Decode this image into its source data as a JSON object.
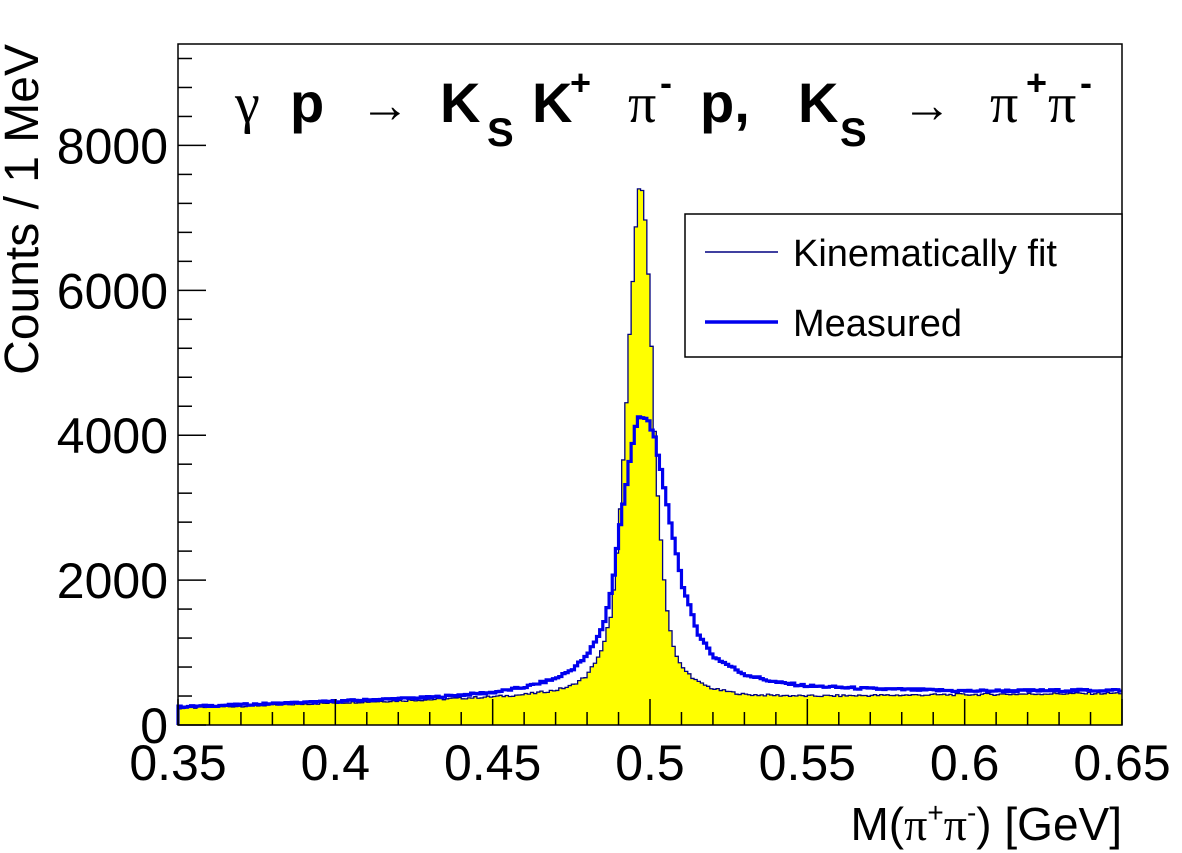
{
  "chart_data": {
    "type": "histogram",
    "title": {
      "gamma": "γ",
      "p1": "p",
      "arrow": "→",
      "K1": "K",
      "s1": "S",
      "K2": "K",
      "plus": "+",
      "pi1": "π",
      "minus1": "-",
      "p2": "p,",
      "K3": "K",
      "s2": "S",
      "pi2": "π",
      "plus2": "+",
      "pi3": "π",
      "minus2": "-"
    },
    "xlabel": {
      "pre": "M(",
      "pi": "π",
      "plus": "+",
      "pi2": "π",
      "minus": "-",
      "post": ") [GeV]"
    },
    "ylabel": "Counts / 1 MeV",
    "xlim": [
      0.35,
      0.65
    ],
    "ylim": [
      0,
      9400
    ],
    "x_ticks": [
      "0.35",
      "0.4",
      "0.45",
      "0.5",
      "0.55",
      "0.6",
      "0.65"
    ],
    "x_tick_values": [
      0.35,
      0.4,
      0.45,
      0.5,
      0.55,
      0.6,
      0.65
    ],
    "y_ticks": [
      "0",
      "2000",
      "4000",
      "6000",
      "8000"
    ],
    "y_tick_values": [
      0,
      2000,
      4000,
      6000,
      8000
    ],
    "bin_width": 0.001,
    "legend": {
      "position": "top-right",
      "entries": [
        {
          "label": "Kinematically fit",
          "color": "#000080"
        },
        {
          "label": "Measured",
          "color": "#0000ee"
        }
      ]
    },
    "series": [
      {
        "name": "Kinematically fit",
        "color": "#000080",
        "fill": "#ffff00",
        "points": [
          [
            0.35,
            230
          ],
          [
            0.37,
            260
          ],
          [
            0.39,
            290
          ],
          [
            0.41,
            320
          ],
          [
            0.43,
            350
          ],
          [
            0.45,
            390
          ],
          [
            0.46,
            420
          ],
          [
            0.47,
            480
          ],
          [
            0.475,
            540
          ],
          [
            0.48,
            680
          ],
          [
            0.485,
            1050
          ],
          [
            0.488,
            1600
          ],
          [
            0.49,
            2600
          ],
          [
            0.492,
            4000
          ],
          [
            0.494,
            5800
          ],
          [
            0.496,
            7300
          ],
          [
            0.497,
            7450
          ],
          [
            0.498,
            7300
          ],
          [
            0.5,
            5800
          ],
          [
            0.502,
            3500
          ],
          [
            0.504,
            2200
          ],
          [
            0.506,
            1400
          ],
          [
            0.508,
            1000
          ],
          [
            0.51,
            800
          ],
          [
            0.515,
            600
          ],
          [
            0.52,
            500
          ],
          [
            0.53,
            420
          ],
          [
            0.55,
            400
          ],
          [
            0.6,
            420
          ],
          [
            0.65,
            440
          ]
        ]
      },
      {
        "name": "Measured",
        "color": "#0000ee",
        "points": [
          [
            0.35,
            250
          ],
          [
            0.37,
            280
          ],
          [
            0.39,
            310
          ],
          [
            0.41,
            345
          ],
          [
            0.43,
            380
          ],
          [
            0.45,
            450
          ],
          [
            0.46,
            520
          ],
          [
            0.47,
            640
          ],
          [
            0.475,
            760
          ],
          [
            0.48,
            950
          ],
          [
            0.485,
            1350
          ],
          [
            0.488,
            1900
          ],
          [
            0.49,
            2600
          ],
          [
            0.492,
            3200
          ],
          [
            0.494,
            3800
          ],
          [
            0.496,
            4200
          ],
          [
            0.498,
            4250
          ],
          [
            0.5,
            4150
          ],
          [
            0.502,
            3900
          ],
          [
            0.504,
            3350
          ],
          [
            0.506,
            2900
          ],
          [
            0.508,
            2500
          ],
          [
            0.51,
            2000
          ],
          [
            0.512,
            1700
          ],
          [
            0.515,
            1300
          ],
          [
            0.52,
            950
          ],
          [
            0.53,
            700
          ],
          [
            0.54,
            590
          ],
          [
            0.55,
            540
          ],
          [
            0.57,
            500
          ],
          [
            0.6,
            470
          ],
          [
            0.65,
            480
          ]
        ]
      }
    ]
  }
}
